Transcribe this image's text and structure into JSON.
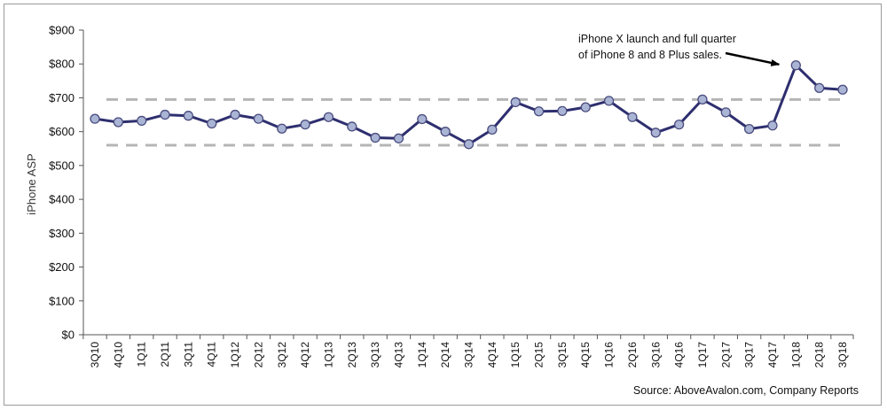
{
  "chart_data": {
    "type": "line",
    "ylabel": "iPhone ASP",
    "ylim": [
      0,
      900
    ],
    "yticks": [
      "$0",
      "$100",
      "$200",
      "$300",
      "$400",
      "$500",
      "$600",
      "$700",
      "$800",
      "$900"
    ],
    "ytick_values": [
      0,
      100,
      200,
      300,
      400,
      500,
      600,
      700,
      800,
      900
    ],
    "categories": [
      "3Q10",
      "4Q10",
      "1Q11",
      "2Q11",
      "3Q11",
      "4Q11",
      "1Q12",
      "2Q12",
      "3Q12",
      "4Q12",
      "1Q13",
      "2Q13",
      "3Q13",
      "4Q13",
      "1Q14",
      "2Q14",
      "3Q14",
      "4Q14",
      "1Q15",
      "2Q15",
      "3Q15",
      "4Q15",
      "1Q16",
      "2Q16",
      "3Q16",
      "4Q16",
      "1Q17",
      "2Q17",
      "3Q17",
      "4Q17",
      "1Q18",
      "2Q18",
      "3Q18"
    ],
    "series": [
      {
        "values": [
          638,
          628,
          632,
          650,
          647,
          624,
          650,
          638,
          609,
          621,
          643,
          615,
          582,
          580,
          637,
          600,
          563,
          606,
          687,
          660,
          661,
          672,
          691,
          643,
          597,
          621,
          695,
          657,
          608,
          618,
          796,
          729,
          724
        ],
        "color": "#2e2f6f",
        "marker_fill": "#aab4d4"
      }
    ],
    "reference_lines": [
      {
        "y": 695,
        "style": "dashed",
        "color": "#b5b5b5"
      },
      {
        "y": 560,
        "style": "dashed",
        "color": "#b5b5b5"
      }
    ],
    "annotation": {
      "lines": [
        "iPhone X launch and full quarter",
        "of iPhone 8 and 8  Plus sales."
      ],
      "target_category": "1Q18"
    },
    "source": "Source: AboveAvalon.com, Company Reports",
    "grid": false,
    "legend": false
  }
}
